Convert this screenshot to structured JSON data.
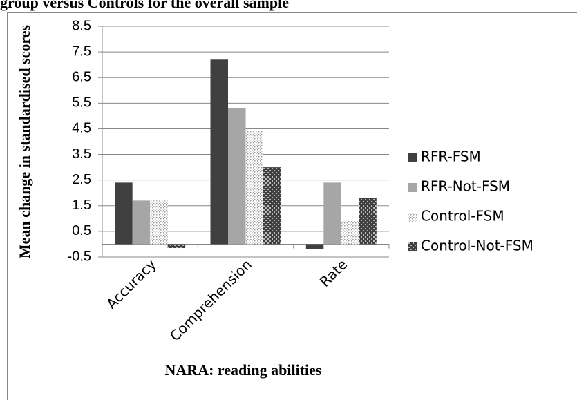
{
  "chart_data": {
    "type": "bar",
    "title": "group versus Controls for the overall sample",
    "x_label": "NARA: reading abilities",
    "y_label": "Mean change in standardised scores",
    "categories": [
      "Accuracy",
      "Comprehension",
      "Rate"
    ],
    "series": [
      {
        "name": "RFR-FSM",
        "color": "#404040",
        "pattern": "solid",
        "values": [
          2.4,
          7.2,
          -0.2
        ]
      },
      {
        "name": "RFR-Not-FSM",
        "color": "#a6a6a6",
        "pattern": "solid",
        "values": [
          1.7,
          5.3,
          2.4
        ]
      },
      {
        "name": "Control-FSM",
        "color": "#bfbfbf",
        "pattern": "dots",
        "values": [
          1.7,
          4.4,
          0.9
        ]
      },
      {
        "name": "Control-Not-FSM",
        "color": "#404040",
        "pattern": "checker",
        "values": [
          -0.15,
          3.0,
          1.8
        ]
      }
    ],
    "ylim": [
      -0.5,
      8.5
    ],
    "yticks": [
      -0.5,
      0.5,
      1.5,
      2.5,
      3.5,
      4.5,
      5.5,
      6.5,
      7.5,
      8.5
    ],
    "grid": true,
    "legend": "right"
  }
}
